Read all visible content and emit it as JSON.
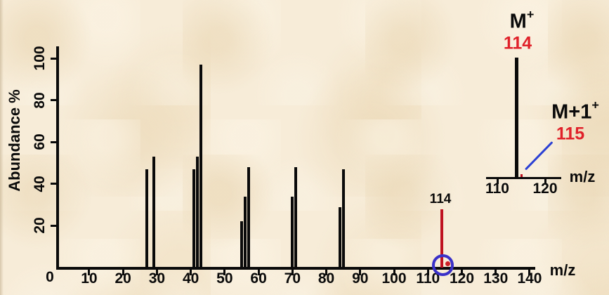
{
  "colors": {
    "background": "#f7ecd8",
    "black": "#0a0a0a",
    "red_bar": "#bf1220",
    "red_text": "#e0212a",
    "red_dot": "#cc2127",
    "blue_circle": "#3a30c8",
    "blue_line": "#2b40d4"
  },
  "chart_data": {
    "type": "bar",
    "title": "",
    "xlabel": "m/z",
    "ylabel": "Abundance %",
    "origin_label": "0",
    "xlim": [
      0,
      141
    ],
    "ylim": [
      0,
      100
    ],
    "grid": false,
    "x_ticks": [
      10,
      20,
      30,
      40,
      50,
      60,
      70,
      80,
      90,
      100,
      110,
      120,
      130,
      140
    ],
    "y_ticks": [
      20,
      40,
      60,
      80,
      100
    ],
    "peaks": [
      {
        "mz": 27,
        "abundance": 47
      },
      {
        "mz": 29,
        "abundance": 53
      },
      {
        "mz": 41,
        "abundance": 47
      },
      {
        "mz": 42,
        "abundance": 53
      },
      {
        "mz": 43,
        "abundance": 97
      },
      {
        "mz": 55,
        "abundance": 22
      },
      {
        "mz": 56,
        "abundance": 34
      },
      {
        "mz": 57,
        "abundance": 48
      },
      {
        "mz": 70,
        "abundance": 34
      },
      {
        "mz": 71,
        "abundance": 48
      },
      {
        "mz": 84,
        "abundance": 29
      },
      {
        "mz": 85,
        "abundance": 47
      }
    ],
    "molecular_ion": {
      "mz": 114,
      "abundance": 28,
      "label": "114"
    },
    "m_plus_one": {
      "mz": 115,
      "abundance": 2
    }
  },
  "inset_chart": {
    "type": "bar",
    "xlabel": "m/z",
    "x_ticks": [
      110,
      120
    ],
    "molecular_ion": {
      "name": "M",
      "charge": "+",
      "mz_label": "114",
      "mz": 114,
      "abundance": 100
    },
    "m_plus_one": {
      "name": "M+1",
      "charge": "+",
      "mz_label": "115",
      "mz": 115,
      "abundance": 4
    }
  }
}
